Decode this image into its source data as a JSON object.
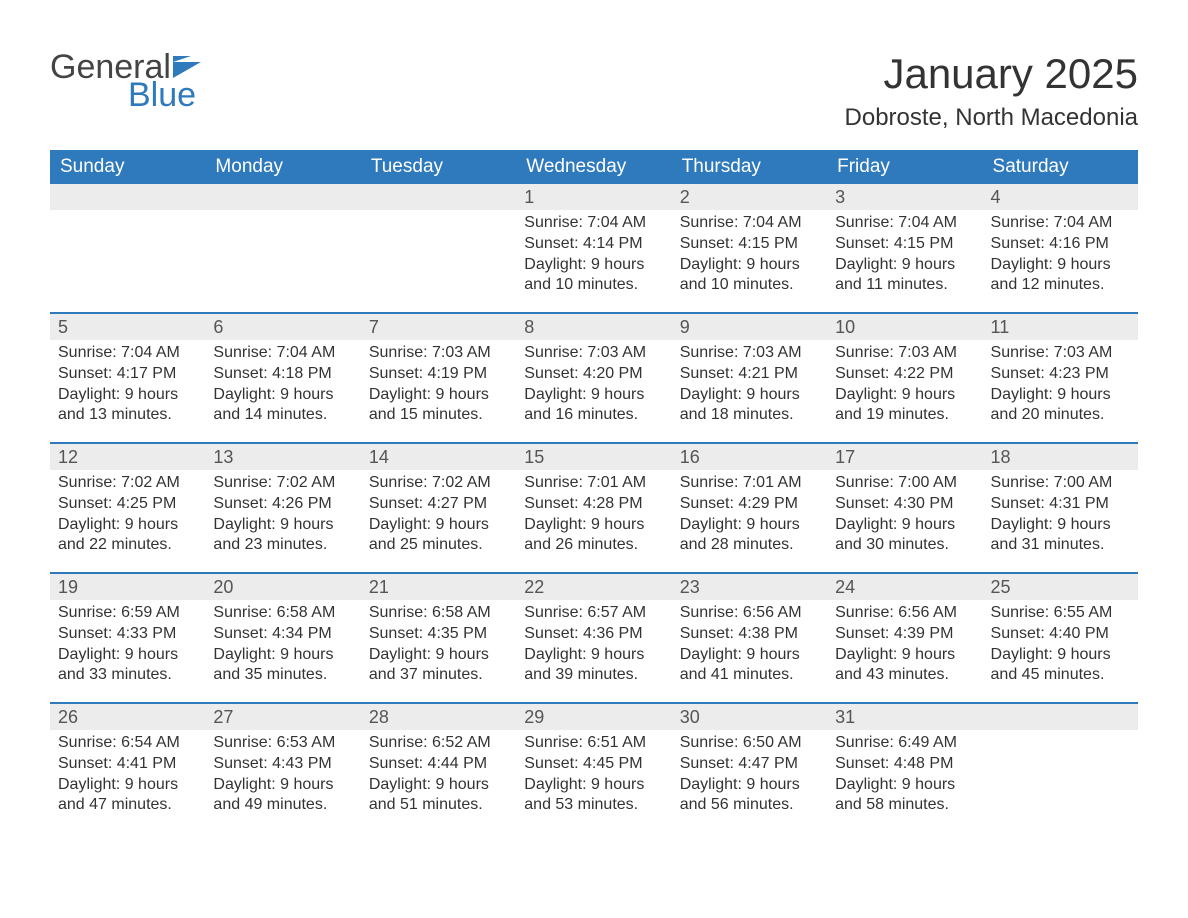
{
  "brand": {
    "general": "General",
    "blue": "Blue"
  },
  "title": "January 2025",
  "location": "Dobroste, North Macedonia",
  "colors": {
    "header_bg": "#2f79bd",
    "header_text": "#ffffff",
    "daynum_bg": "#ececec",
    "week_border": "#2f79bd",
    "body_text": "#333333",
    "logo_blue": "#2f79bd",
    "logo_gray": "#444444"
  },
  "dayNames": [
    "Sunday",
    "Monday",
    "Tuesday",
    "Wednesday",
    "Thursday",
    "Friday",
    "Saturday"
  ],
  "calendar": {
    "type": "table",
    "columns": 7,
    "rows": 5,
    "weeks": [
      [
        {
          "num": "",
          "sunrise": "",
          "sunset": "",
          "daylight1": "",
          "daylight2": ""
        },
        {
          "num": "",
          "sunrise": "",
          "sunset": "",
          "daylight1": "",
          "daylight2": ""
        },
        {
          "num": "",
          "sunrise": "",
          "sunset": "",
          "daylight1": "",
          "daylight2": ""
        },
        {
          "num": "1",
          "sunrise": "Sunrise: 7:04 AM",
          "sunset": "Sunset: 4:14 PM",
          "daylight1": "Daylight: 9 hours",
          "daylight2": "and 10 minutes."
        },
        {
          "num": "2",
          "sunrise": "Sunrise: 7:04 AM",
          "sunset": "Sunset: 4:15 PM",
          "daylight1": "Daylight: 9 hours",
          "daylight2": "and 10 minutes."
        },
        {
          "num": "3",
          "sunrise": "Sunrise: 7:04 AM",
          "sunset": "Sunset: 4:15 PM",
          "daylight1": "Daylight: 9 hours",
          "daylight2": "and 11 minutes."
        },
        {
          "num": "4",
          "sunrise": "Sunrise: 7:04 AM",
          "sunset": "Sunset: 4:16 PM",
          "daylight1": "Daylight: 9 hours",
          "daylight2": "and 12 minutes."
        }
      ],
      [
        {
          "num": "5",
          "sunrise": "Sunrise: 7:04 AM",
          "sunset": "Sunset: 4:17 PM",
          "daylight1": "Daylight: 9 hours",
          "daylight2": "and 13 minutes."
        },
        {
          "num": "6",
          "sunrise": "Sunrise: 7:04 AM",
          "sunset": "Sunset: 4:18 PM",
          "daylight1": "Daylight: 9 hours",
          "daylight2": "and 14 minutes."
        },
        {
          "num": "7",
          "sunrise": "Sunrise: 7:03 AM",
          "sunset": "Sunset: 4:19 PM",
          "daylight1": "Daylight: 9 hours",
          "daylight2": "and 15 minutes."
        },
        {
          "num": "8",
          "sunrise": "Sunrise: 7:03 AM",
          "sunset": "Sunset: 4:20 PM",
          "daylight1": "Daylight: 9 hours",
          "daylight2": "and 16 minutes."
        },
        {
          "num": "9",
          "sunrise": "Sunrise: 7:03 AM",
          "sunset": "Sunset: 4:21 PM",
          "daylight1": "Daylight: 9 hours",
          "daylight2": "and 18 minutes."
        },
        {
          "num": "10",
          "sunrise": "Sunrise: 7:03 AM",
          "sunset": "Sunset: 4:22 PM",
          "daylight1": "Daylight: 9 hours",
          "daylight2": "and 19 minutes."
        },
        {
          "num": "11",
          "sunrise": "Sunrise: 7:03 AM",
          "sunset": "Sunset: 4:23 PM",
          "daylight1": "Daylight: 9 hours",
          "daylight2": "and 20 minutes."
        }
      ],
      [
        {
          "num": "12",
          "sunrise": "Sunrise: 7:02 AM",
          "sunset": "Sunset: 4:25 PM",
          "daylight1": "Daylight: 9 hours",
          "daylight2": "and 22 minutes."
        },
        {
          "num": "13",
          "sunrise": "Sunrise: 7:02 AM",
          "sunset": "Sunset: 4:26 PM",
          "daylight1": "Daylight: 9 hours",
          "daylight2": "and 23 minutes."
        },
        {
          "num": "14",
          "sunrise": "Sunrise: 7:02 AM",
          "sunset": "Sunset: 4:27 PM",
          "daylight1": "Daylight: 9 hours",
          "daylight2": "and 25 minutes."
        },
        {
          "num": "15",
          "sunrise": "Sunrise: 7:01 AM",
          "sunset": "Sunset: 4:28 PM",
          "daylight1": "Daylight: 9 hours",
          "daylight2": "and 26 minutes."
        },
        {
          "num": "16",
          "sunrise": "Sunrise: 7:01 AM",
          "sunset": "Sunset: 4:29 PM",
          "daylight1": "Daylight: 9 hours",
          "daylight2": "and 28 minutes."
        },
        {
          "num": "17",
          "sunrise": "Sunrise: 7:00 AM",
          "sunset": "Sunset: 4:30 PM",
          "daylight1": "Daylight: 9 hours",
          "daylight2": "and 30 minutes."
        },
        {
          "num": "18",
          "sunrise": "Sunrise: 7:00 AM",
          "sunset": "Sunset: 4:31 PM",
          "daylight1": "Daylight: 9 hours",
          "daylight2": "and 31 minutes."
        }
      ],
      [
        {
          "num": "19",
          "sunrise": "Sunrise: 6:59 AM",
          "sunset": "Sunset: 4:33 PM",
          "daylight1": "Daylight: 9 hours",
          "daylight2": "and 33 minutes."
        },
        {
          "num": "20",
          "sunrise": "Sunrise: 6:58 AM",
          "sunset": "Sunset: 4:34 PM",
          "daylight1": "Daylight: 9 hours",
          "daylight2": "and 35 minutes."
        },
        {
          "num": "21",
          "sunrise": "Sunrise: 6:58 AM",
          "sunset": "Sunset: 4:35 PM",
          "daylight1": "Daylight: 9 hours",
          "daylight2": "and 37 minutes."
        },
        {
          "num": "22",
          "sunrise": "Sunrise: 6:57 AM",
          "sunset": "Sunset: 4:36 PM",
          "daylight1": "Daylight: 9 hours",
          "daylight2": "and 39 minutes."
        },
        {
          "num": "23",
          "sunrise": "Sunrise: 6:56 AM",
          "sunset": "Sunset: 4:38 PM",
          "daylight1": "Daylight: 9 hours",
          "daylight2": "and 41 minutes."
        },
        {
          "num": "24",
          "sunrise": "Sunrise: 6:56 AM",
          "sunset": "Sunset: 4:39 PM",
          "daylight1": "Daylight: 9 hours",
          "daylight2": "and 43 minutes."
        },
        {
          "num": "25",
          "sunrise": "Sunrise: 6:55 AM",
          "sunset": "Sunset: 4:40 PM",
          "daylight1": "Daylight: 9 hours",
          "daylight2": "and 45 minutes."
        }
      ],
      [
        {
          "num": "26",
          "sunrise": "Sunrise: 6:54 AM",
          "sunset": "Sunset: 4:41 PM",
          "daylight1": "Daylight: 9 hours",
          "daylight2": "and 47 minutes."
        },
        {
          "num": "27",
          "sunrise": "Sunrise: 6:53 AM",
          "sunset": "Sunset: 4:43 PM",
          "daylight1": "Daylight: 9 hours",
          "daylight2": "and 49 minutes."
        },
        {
          "num": "28",
          "sunrise": "Sunrise: 6:52 AM",
          "sunset": "Sunset: 4:44 PM",
          "daylight1": "Daylight: 9 hours",
          "daylight2": "and 51 minutes."
        },
        {
          "num": "29",
          "sunrise": "Sunrise: 6:51 AM",
          "sunset": "Sunset: 4:45 PM",
          "daylight1": "Daylight: 9 hours",
          "daylight2": "and 53 minutes."
        },
        {
          "num": "30",
          "sunrise": "Sunrise: 6:50 AM",
          "sunset": "Sunset: 4:47 PM",
          "daylight1": "Daylight: 9 hours",
          "daylight2": "and 56 minutes."
        },
        {
          "num": "31",
          "sunrise": "Sunrise: 6:49 AM",
          "sunset": "Sunset: 4:48 PM",
          "daylight1": "Daylight: 9 hours",
          "daylight2": "and 58 minutes."
        },
        {
          "num": "",
          "sunrise": "",
          "sunset": "",
          "daylight1": "",
          "daylight2": ""
        }
      ]
    ]
  }
}
